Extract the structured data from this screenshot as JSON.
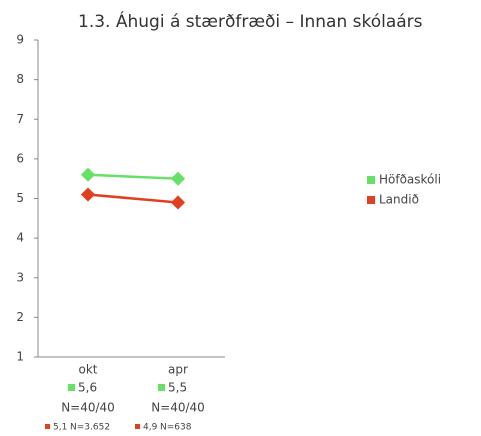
{
  "chart_data": {
    "type": "line",
    "title": "1.3. Áhugi á stærðfræði – Innan skólaárs",
    "categories": [
      "okt",
      "apr"
    ],
    "series": [
      {
        "name": "Höfðaskóli",
        "color": "#66e066",
        "values": [
          5.6,
          5.5
        ],
        "value_labels": [
          "5,6",
          "5,5"
        ],
        "n_labels": [
          "N=40/40",
          "N=40/40"
        ]
      },
      {
        "name": "Landið",
        "color": "#e04020",
        "values": [
          5.1,
          4.9
        ],
        "value_labels": [
          "5,1",
          "4,9"
        ],
        "n_labels": [
          "N=3.652",
          "N=638"
        ]
      }
    ],
    "ylim": [
      1,
      9
    ],
    "yticks": [
      1,
      2,
      3,
      4,
      5,
      6,
      7,
      8,
      9
    ],
    "grid": false,
    "legend": "right"
  }
}
